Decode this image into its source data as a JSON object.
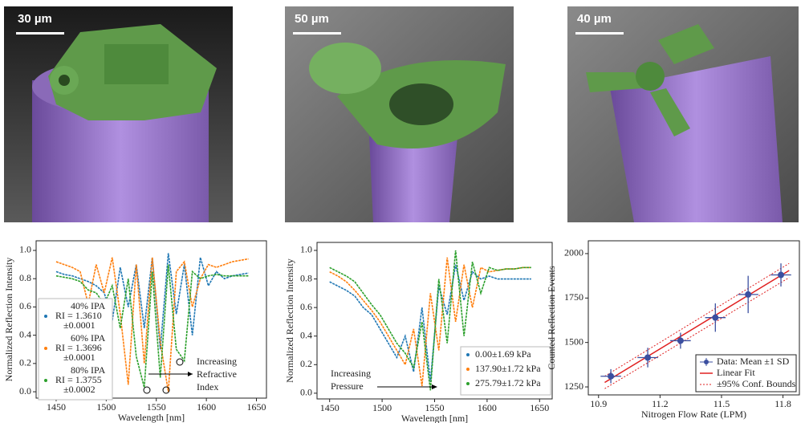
{
  "images": [
    {
      "scale_label": "30 µm"
    },
    {
      "scale_label": "50 µm"
    },
    {
      "scale_label": "40 µm"
    }
  ],
  "chart_data": [
    {
      "type": "line",
      "xlabel": "Wavelength [nm]",
      "ylabel": "Normalized Reflection Intensity",
      "xlim": [
        1430,
        1660
      ],
      "ylim": [
        -0.045,
        1.068
      ],
      "xticks": [
        1450,
        1500,
        1550,
        1600,
        1650
      ],
      "yticks": [
        {
          "value": 0,
          "label": "0.0"
        },
        0.2,
        0.4,
        0.6,
        0.8,
        {
          "value": 1,
          "label": "1.0"
        }
      ],
      "x": [
        1450,
        1458,
        1466,
        1474,
        1482,
        1490,
        1498,
        1506,
        1514,
        1522,
        1530,
        1538,
        1546,
        1554,
        1562,
        1570,
        1578,
        1586,
        1594,
        1602,
        1610,
        1618,
        1626,
        1634,
        1642
      ],
      "series": [
        {
          "name": "40% IPA",
          "label_lines": [
            "RI = 1.3610",
            "±0.0001"
          ],
          "color": "#1f77b4",
          "values": [
            0.85,
            0.83,
            0.82,
            0.8,
            0.78,
            0.75,
            0.7,
            0.5,
            0.88,
            0.6,
            0.9,
            0.45,
            0.95,
            0.3,
            0.98,
            0.55,
            0.9,
            0.4,
            0.95,
            0.75,
            0.85,
            0.8,
            0.82,
            0.83,
            0.84
          ]
        },
        {
          "name": "60% IPA",
          "label_lines": [
            "RI = 1.3696",
            "±0.0001"
          ],
          "color": "#ff7f0e",
          "values": [
            0.92,
            0.9,
            0.88,
            0.85,
            0.62,
            0.9,
            0.7,
            0.95,
            0.55,
            0.05,
            0.9,
            0.2,
            0.95,
            0.35,
            0.0,
            0.85,
            0.92,
            0.6,
            0.8,
            0.9,
            0.88,
            0.9,
            0.92,
            0.93,
            0.94
          ]
        },
        {
          "name": "80% IPA",
          "label_lines": [
            "RI = 1.3755",
            "±0.0002"
          ],
          "color": "#2ca02c",
          "values": [
            0.82,
            0.81,
            0.8,
            0.78,
            0.72,
            0.7,
            0.62,
            0.75,
            0.45,
            0.8,
            0.25,
            0.03,
            0.85,
            0.1,
            0.9,
            0.3,
            0.22,
            0.85,
            0.8,
            0.82,
            0.83,
            0.82,
            0.82,
            0.82,
            0.82
          ]
        }
      ],
      "annotation": [
        "Increasing",
        "Refractive",
        "Index"
      ]
    },
    {
      "type": "line",
      "xlabel": "Wavelength [nm]",
      "ylabel": "Normalized Reflection Intensity",
      "xlim": [
        1438,
        1662
      ],
      "ylim": [
        -0.04,
        1.056
      ],
      "xticks": [
        1450,
        1500,
        1550,
        1600,
        1650
      ],
      "yticks": [
        {
          "value": 0,
          "label": "0.0"
        },
        0.2,
        0.4,
        0.6,
        0.8,
        {
          "value": 1,
          "label": "1.0"
        }
      ],
      "x": [
        1450,
        1458,
        1466,
        1474,
        1482,
        1490,
        1498,
        1506,
        1514,
        1522,
        1530,
        1538,
        1546,
        1554,
        1562,
        1570,
        1578,
        1586,
        1594,
        1602,
        1610,
        1618,
        1626,
        1634,
        1642
      ],
      "series": [
        {
          "name": "0.00±1.69 kPa",
          "color": "#1f77b4",
          "values": [
            0.78,
            0.75,
            0.72,
            0.68,
            0.6,
            0.55,
            0.45,
            0.35,
            0.25,
            0.4,
            0.15,
            0.6,
            0.08,
            0.75,
            0.55,
            0.9,
            0.65,
            0.85,
            0.8,
            0.82,
            0.8,
            0.8,
            0.8,
            0.8,
            0.8
          ]
        },
        {
          "name": "137.90±1.72 kPa",
          "color": "#ff7f0e",
          "values": [
            0.85,
            0.82,
            0.78,
            0.72,
            0.65,
            0.58,
            0.5,
            0.4,
            0.3,
            0.2,
            0.45,
            0.05,
            0.7,
            0.3,
            0.95,
            0.5,
            0.9,
            0.6,
            0.88,
            0.85,
            0.86,
            0.87,
            0.87,
            0.88,
            0.88
          ]
        },
        {
          "name": "275.79±1.72 kPa",
          "color": "#2ca02c",
          "values": [
            0.88,
            0.85,
            0.82,
            0.78,
            0.7,
            0.62,
            0.55,
            0.45,
            0.35,
            0.28,
            0.18,
            0.5,
            0.02,
            0.8,
            0.35,
            1.0,
            0.4,
            0.92,
            0.7,
            0.88,
            0.86,
            0.87,
            0.87,
            0.88,
            0.88
          ]
        }
      ],
      "annotation": [
        "Increasing",
        "Pressure"
      ]
    },
    {
      "type": "scatter",
      "xlabel": "Nitrogen Flow Rate (LPM)",
      "ylabel": "Counted Reflection Events",
      "xlim": [
        10.85,
        11.88
      ],
      "ylim": [
        1205,
        2072
      ],
      "xticks": [
        10.9,
        11.2,
        11.5,
        11.8
      ],
      "yticks": [
        1250,
        1500,
        1750,
        2000
      ],
      "series": [
        {
          "name": "Data: Mean ±1 SD",
          "color": "#3b4fa0",
          "x": [
            10.96,
            11.14,
            11.3,
            11.47,
            11.63,
            11.79
          ],
          "values": [
            1310,
            1415,
            1510,
            1640,
            1770,
            1880
          ],
          "xerr": [
            0.05,
            0.05,
            0.05,
            0.05,
            0.05,
            0.05
          ],
          "yerr": [
            40,
            55,
            45,
            80,
            105,
            65
          ]
        }
      ],
      "fit": {
        "name": "Linear Fit",
        "color": "#e02020",
        "x": [
          10.93,
          11.83
        ],
        "values": [
          1275,
          1905
        ]
      },
      "bounds": {
        "name": "±95% Conf. Bounds",
        "color": "#e02020",
        "x": [
          10.93,
          11.83
        ],
        "upper": [
          1310,
          1945
        ],
        "lower": [
          1240,
          1865
        ]
      }
    }
  ]
}
